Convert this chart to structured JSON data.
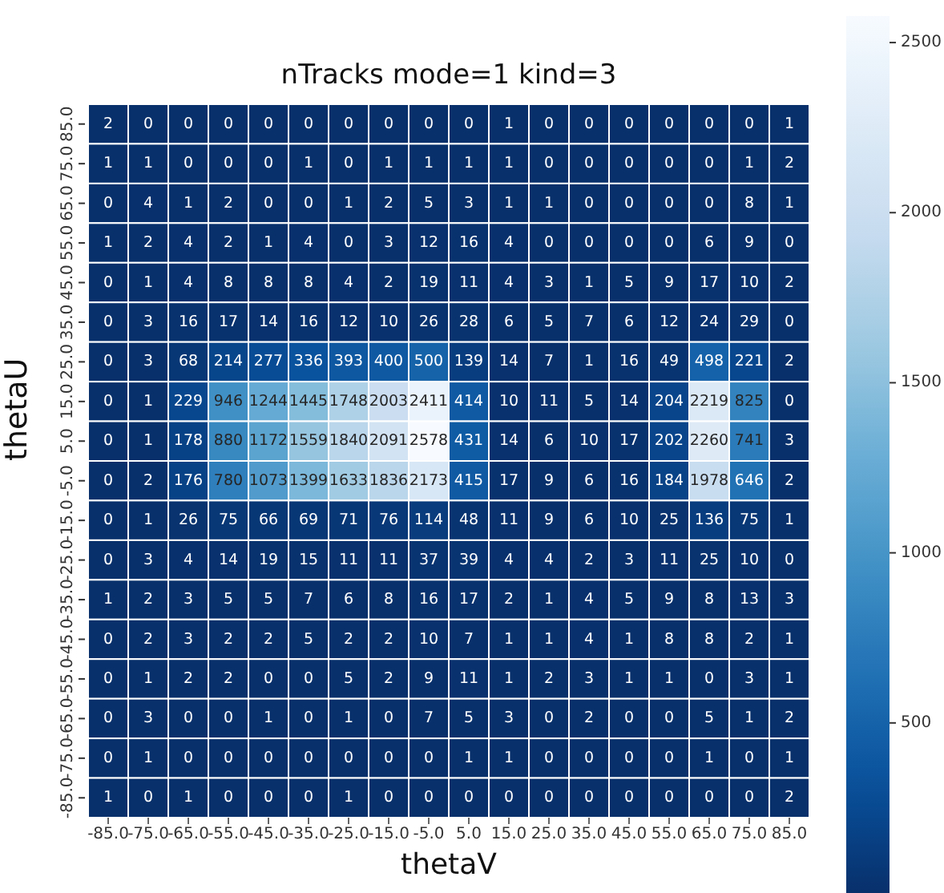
{
  "chart_data": {
    "type": "heatmap",
    "title": "nTracks mode=1 kind=3",
    "xlabel": "thetaV",
    "ylabel": "thetaU",
    "categories": [
      "-85.0",
      "-75.0",
      "-65.0",
      "-55.0",
      "-45.0",
      "-35.0",
      "-25.0",
      "-15.0",
      "-5.0",
      "5.0",
      "15.0",
      "25.0",
      "35.0",
      "45.0",
      "55.0",
      "65.0",
      "75.0",
      "85.0"
    ],
    "y_categories": [
      "85.0",
      "75.0",
      "65.0",
      "55.0",
      "45.0",
      "35.0",
      "25.0",
      "15.0",
      "5.0",
      "-5.0",
      "-15.0",
      "-25.0",
      "-35.0",
      "-45.0",
      "-55.0",
      "-65.0",
      "-75.0",
      "-85.0"
    ],
    "cells": [
      [
        2,
        0,
        0,
        0,
        0,
        0,
        0,
        0,
        0,
        0,
        1,
        0,
        0,
        0,
        0,
        0,
        0,
        1
      ],
      [
        1,
        1,
        0,
        0,
        0,
        1,
        0,
        1,
        1,
        1,
        1,
        0,
        0,
        0,
        0,
        0,
        1,
        2
      ],
      [
        0,
        4,
        1,
        2,
        0,
        0,
        1,
        2,
        5,
        3,
        1,
        1,
        0,
        0,
        0,
        0,
        8,
        1
      ],
      [
        1,
        2,
        4,
        2,
        1,
        4,
        0,
        3,
        12,
        16,
        4,
        0,
        0,
        0,
        0,
        6,
        9,
        0
      ],
      [
        0,
        1,
        4,
        8,
        8,
        8,
        4,
        2,
        19,
        11,
        4,
        3,
        1,
        5,
        9,
        17,
        10,
        2
      ],
      [
        0,
        3,
        16,
        17,
        14,
        16,
        12,
        10,
        26,
        28,
        6,
        5,
        7,
        6,
        12,
        24,
        29,
        0
      ],
      [
        0,
        3,
        68,
        214,
        277,
        336,
        393,
        400,
        500,
        139,
        14,
        7,
        1,
        16,
        49,
        498,
        221,
        2
      ],
      [
        0,
        1,
        229,
        946,
        1244,
        1445,
        1748,
        2003,
        2411,
        414,
        10,
        11,
        5,
        14,
        204,
        2219,
        825,
        0
      ],
      [
        0,
        1,
        178,
        880,
        1172,
        1559,
        1840,
        2091,
        2578,
        431,
        14,
        6,
        10,
        17,
        202,
        2260,
        741,
        3
      ],
      [
        0,
        2,
        176,
        780,
        1073,
        1399,
        1633,
        1836,
        2173,
        415,
        17,
        9,
        6,
        16,
        184,
        1978,
        646,
        2
      ],
      [
        0,
        1,
        26,
        75,
        66,
        69,
        71,
        76,
        114,
        48,
        11,
        9,
        6,
        10,
        25,
        136,
        75,
        1
      ],
      [
        0,
        3,
        4,
        14,
        19,
        15,
        11,
        11,
        37,
        39,
        4,
        4,
        2,
        3,
        11,
        25,
        10,
        0
      ],
      [
        1,
        2,
        3,
        5,
        5,
        7,
        6,
        8,
        16,
        17,
        2,
        1,
        4,
        5,
        9,
        8,
        13,
        3
      ],
      [
        0,
        2,
        3,
        2,
        2,
        5,
        2,
        2,
        10,
        7,
        1,
        1,
        4,
        1,
        8,
        8,
        2,
        1
      ],
      [
        0,
        1,
        2,
        2,
        0,
        0,
        5,
        2,
        9,
        11,
        1,
        2,
        3,
        1,
        1,
        0,
        3,
        1
      ],
      [
        0,
        3,
        0,
        0,
        1,
        0,
        1,
        0,
        7,
        5,
        3,
        0,
        2,
        0,
        0,
        5,
        1,
        2
      ],
      [
        0,
        1,
        0,
        0,
        0,
        0,
        0,
        0,
        0,
        1,
        1,
        0,
        0,
        0,
        0,
        1,
        0,
        1
      ],
      [
        1,
        0,
        1,
        0,
        0,
        0,
        1,
        0,
        0,
        0,
        0,
        0,
        0,
        0,
        0,
        0,
        0,
        2
      ]
    ],
    "clim": [
      0,
      2578
    ],
    "cticks": [
      500,
      1000,
      1500,
      2000,
      2500
    ],
    "data_labels": true
  }
}
